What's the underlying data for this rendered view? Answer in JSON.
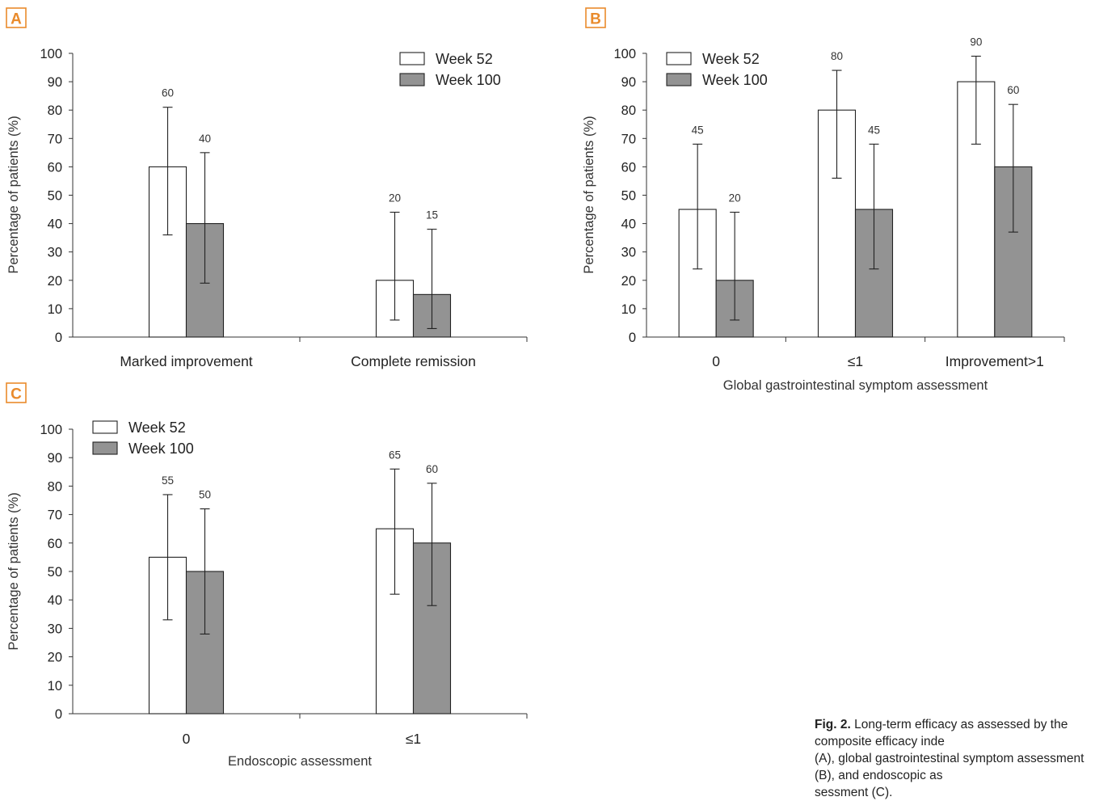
{
  "colors": {
    "week52_fill": "#ffffff",
    "week100_fill": "#939393",
    "panel_badge": "#e98b2c",
    "axis": "#333333"
  },
  "caption": {
    "label": "Fig. 2.",
    "text": "Long-term efficacy as assessed by the composite efficacy inde\n(A), global gastrointestinal symptom assessment (B), and endoscopic as\nsessment (C)."
  },
  "chart_data": [
    {
      "panel": "A",
      "type": "bar",
      "categories": [
        "Marked improvement",
        "Complete remission"
      ],
      "series": [
        {
          "name": "Week 52",
          "values": [
            60,
            20
          ],
          "err_low": [
            36,
            6
          ],
          "err_high": [
            81,
            44
          ]
        },
        {
          "name": "Week 100",
          "values": [
            40,
            15
          ],
          "err_low": [
            19,
            3
          ],
          "err_high": [
            65,
            38
          ]
        }
      ],
      "data_labels": [
        [
          "60",
          "20"
        ],
        [
          "40",
          "15"
        ]
      ],
      "xlabel": "",
      "ylabel": "Percentage of patients (%)",
      "ylim": [
        0,
        100
      ],
      "yticks": [
        "0",
        "10",
        "20",
        "30",
        "40",
        "50",
        "60",
        "70",
        "80",
        "90",
        "100"
      ],
      "legend": "top-right",
      "grid": false
    },
    {
      "panel": "B",
      "type": "bar",
      "categories": [
        "0",
        "≤1",
        "Improvement>1"
      ],
      "series": [
        {
          "name": "Week 52",
          "values": [
            45,
            80,
            90
          ],
          "err_low": [
            24,
            56,
            68
          ],
          "err_high": [
            68,
            94,
            99
          ]
        },
        {
          "name": "Week 100",
          "values": [
            20,
            45,
            60
          ],
          "err_low": [
            6,
            24,
            37
          ],
          "err_high": [
            44,
            68,
            82
          ]
        }
      ],
      "data_labels": [
        [
          "45",
          "80",
          "90"
        ],
        [
          "20",
          "45",
          "60"
        ]
      ],
      "xlabel": "Global gastrointestinal symptom assessment",
      "ylabel": "Percentage of patients (%)",
      "ylim": [
        0,
        100
      ],
      "yticks": [
        "0",
        "10",
        "20",
        "30",
        "40",
        "50",
        "60",
        "70",
        "80",
        "90",
        "100"
      ],
      "legend": "top-left",
      "grid": false
    },
    {
      "panel": "C",
      "type": "bar",
      "categories": [
        "0",
        "≤1"
      ],
      "series": [
        {
          "name": "Week 52",
          "values": [
            55,
            65
          ],
          "err_low": [
            33,
            42
          ],
          "err_high": [
            77,
            86
          ]
        },
        {
          "name": "Week 100",
          "values": [
            50,
            60
          ],
          "err_low": [
            28,
            38
          ],
          "err_high": [
            72,
            81
          ]
        }
      ],
      "data_labels": [
        [
          "55",
          "65"
        ],
        [
          "50",
          "60"
        ]
      ],
      "xlabel": "Endoscopic assessment",
      "ylabel": "Percentage of patients (%)",
      "ylim": [
        0,
        100
      ],
      "yticks": [
        "0",
        "10",
        "20",
        "30",
        "40",
        "50",
        "60",
        "70",
        "80",
        "90",
        "100"
      ],
      "legend": "top-left",
      "grid": false
    }
  ]
}
